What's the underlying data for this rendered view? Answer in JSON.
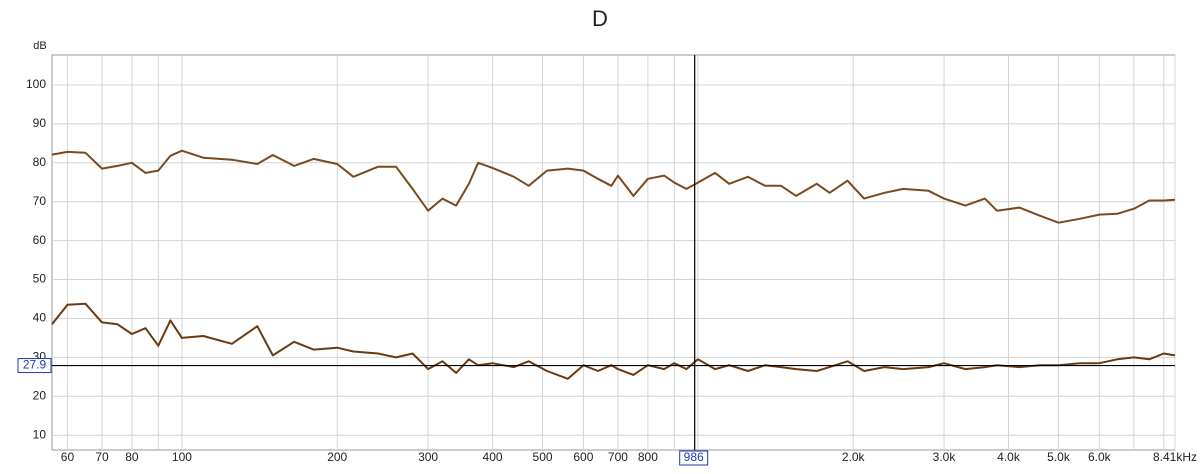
{
  "chart_data": {
    "type": "line",
    "title": "D",
    "y_unit": "dB",
    "xscale": "log",
    "grid": true,
    "xlim": [
      56,
      8410
    ],
    "ylim": [
      6.2,
      107.7
    ],
    "yticks": [
      10,
      20,
      30,
      40,
      50,
      60,
      70,
      80,
      90,
      100
    ],
    "xticks": [
      60,
      70,
      80,
      100,
      200,
      300,
      400,
      500,
      600,
      700,
      800,
      {
        "value": 2000,
        "label": "2.0k"
      },
      {
        "value": 3000,
        "label": "3.0k"
      },
      {
        "value": 4000,
        "label": "4.0k"
      },
      {
        "value": 5000,
        "label": "5.0k"
      },
      {
        "value": 6000,
        "label": "6.0k"
      },
      {
        "value": 8410,
        "label": "8.41kHz"
      }
    ],
    "xgrid_minor": [
      90,
      900,
      1000,
      7000,
      8000
    ],
    "cursor": {
      "x": 986,
      "y": 27.9
    },
    "x": [
      56,
      60,
      65,
      70,
      75,
      80,
      85,
      90,
      95,
      100,
      110,
      125,
      140,
      150,
      165,
      180,
      200,
      215,
      240,
      260,
      280,
      300,
      320,
      340,
      360,
      375,
      400,
      440,
      470,
      510,
      560,
      600,
      640,
      680,
      700,
      750,
      800,
      860,
      900,
      950,
      1000,
      1080,
      1150,
      1250,
      1350,
      1450,
      1550,
      1700,
      1800,
      1950,
      2100,
      2300,
      2500,
      2800,
      3000,
      3300,
      3600,
      3800,
      4200,
      4600,
      5000,
      5500,
      6000,
      6500,
      7000,
      7500,
      8000,
      8410
    ],
    "series": [
      {
        "color": "#7a4a1e",
        "values": [
          82.1,
          82.8,
          82.6,
          78.5,
          79.2,
          80,
          77.4,
          78,
          81.8,
          83.1,
          81.3,
          80.8,
          79.7,
          82,
          79.2,
          81,
          79.7,
          76.4,
          79,
          79,
          73.3,
          67.7,
          70.8,
          69,
          74.6,
          80,
          78.7,
          76.4,
          74.1,
          78,
          78.5,
          78,
          75.9,
          74.1,
          76.7,
          71.5,
          75.9,
          76.7,
          74.9,
          73.3,
          74.9,
          77.4,
          74.6,
          76.4,
          74.1,
          74.1,
          71.5,
          74.6,
          72.3,
          75.4,
          70.8,
          72.3,
          73.3,
          72.8,
          70.8,
          69,
          70.8,
          67.7,
          68.5,
          66.4,
          64.6,
          65.6,
          66.7,
          66.9,
          68.2,
          70.3,
          70.3,
          70.5
        ]
      },
      {
        "color": "#6b3a10",
        "values": [
          38.5,
          43.5,
          43.8,
          39,
          38.5,
          36,
          37.5,
          33,
          39.5,
          35,
          35.5,
          33.5,
          38,
          30.5,
          34,
          32,
          32.5,
          31.5,
          31,
          30,
          31,
          27,
          29,
          26,
          29.5,
          28,
          28.5,
          27.5,
          29,
          26.5,
          24.5,
          28,
          26.5,
          28,
          27,
          25.5,
          28,
          27,
          28.5,
          27,
          29.5,
          27,
          28,
          26.5,
          28,
          27.5,
          27,
          26.5,
          27.5,
          29,
          26.5,
          27.5,
          27,
          27.5,
          28.5,
          27,
          27.5,
          28,
          27.5,
          28,
          28,
          28.5,
          28.5,
          29.5,
          30,
          29.5,
          31,
          30.5
        ]
      }
    ]
  }
}
